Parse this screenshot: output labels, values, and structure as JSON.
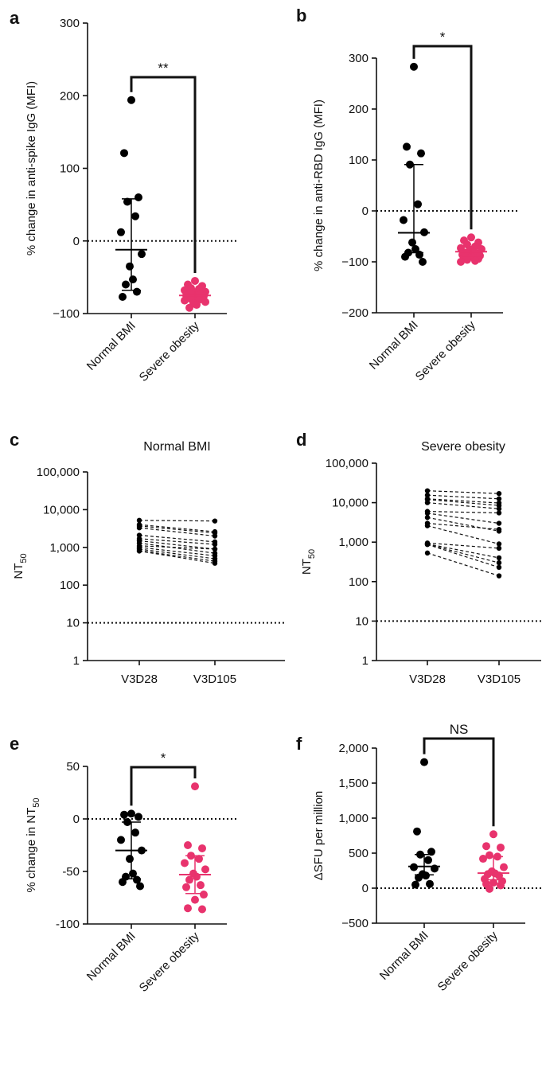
{
  "chart_data": [
    {
      "panel": "a",
      "type": "scatter",
      "ylabel": "% change in anti-spike IgG (MFI)",
      "ylim": [
        -100,
        300
      ],
      "yticks": [
        -100,
        0,
        100,
        200,
        300
      ],
      "ytick_labels": [
        "−100",
        "0",
        "100",
        "200",
        "300"
      ],
      "categories": [
        "Normal BMI",
        "Severe obesity"
      ],
      "reference_line": 0,
      "significance": "**",
      "series": [
        {
          "values": [
            194,
            121,
            60,
            54,
            34,
            12,
            -18,
            -35,
            -53,
            -60,
            -70,
            -77
          ],
          "median": -12,
          "iqr": [
            -68,
            58
          ],
          "color": "#000000"
        },
        {
          "values": [
            -55,
            -60,
            -62,
            -65,
            -66,
            -68,
            -70,
            -70,
            -72,
            -73,
            -74,
            -75,
            -76,
            -77,
            -78,
            -79,
            -80,
            -81,
            -82,
            -84,
            -86,
            -88,
            -92
          ],
          "median": -75,
          "iqr": [
            -80,
            -68
          ],
          "color": "#e8336d"
        }
      ]
    },
    {
      "panel": "b",
      "type": "scatter",
      "ylabel": "% change in anti-RBD IgG (MFI)",
      "ylim": [
        -200,
        300
      ],
      "yticks": [
        -200,
        -100,
        0,
        100,
        200,
        300
      ],
      "ytick_labels": [
        "−200",
        "−100",
        "0",
        "100",
        "200",
        "300"
      ],
      "categories": [
        "Normal BMI",
        "Severe obesity"
      ],
      "reference_line": 0,
      "significance": "*",
      "series": [
        {
          "values": [
            283,
            126,
            113,
            91,
            13,
            -18,
            -42,
            -62,
            -75,
            -82,
            -86,
            -90,
            -100
          ],
          "median": -43,
          "iqr": [
            -82,
            91
          ],
          "color": "#000000"
        },
        {
          "values": [
            -52,
            -58,
            -62,
            -66,
            -70,
            -73,
            -75,
            -78,
            -80,
            -82,
            -84,
            -86,
            -88,
            -90,
            -92,
            -94,
            -96,
            -98,
            -100
          ],
          "median": -80,
          "iqr": [
            -88,
            -70
          ],
          "color": "#e8336d"
        }
      ]
    },
    {
      "panel": "c",
      "type": "line",
      "title": "Normal BMI",
      "ylabel": "NT50",
      "yscale": "log",
      "ylim": [
        1,
        100000
      ],
      "yticks": [
        1,
        10,
        100,
        1000,
        10000,
        100000
      ],
      "ytick_labels": [
        "1",
        "10",
        "100",
        "1,000",
        "10,000",
        "100,000"
      ],
      "categories": [
        "V3D28",
        "V3D105"
      ],
      "reference_line": 10,
      "pairs": [
        [
          5200,
          5000
        ],
        [
          4000,
          2600
        ],
        [
          3700,
          2400
        ],
        [
          3300,
          2000
        ],
        [
          2100,
          1400
        ],
        [
          1700,
          1200
        ],
        [
          1500,
          900
        ],
        [
          1300,
          700
        ],
        [
          1100,
          900
        ],
        [
          1000,
          600
        ],
        [
          900,
          500
        ],
        [
          820,
          430
        ],
        [
          800,
          380
        ]
      ]
    },
    {
      "panel": "d",
      "type": "line",
      "title": "Severe obesity",
      "ylabel": "NT50",
      "yscale": "log",
      "ylim": [
        1,
        100000
      ],
      "yticks": [
        1,
        10,
        100,
        1000,
        10000,
        100000
      ],
      "ytick_labels": [
        "1",
        "10",
        "100",
        "1,000",
        "10,000",
        "100,000"
      ],
      "categories": [
        "V3D28",
        "V3D105"
      ],
      "reference_line": 10,
      "pairs": [
        [
          20000,
          17000
        ],
        [
          15500,
          12500
        ],
        [
          12500,
          9800
        ],
        [
          12000,
          8500
        ],
        [
          10000,
          7000
        ],
        [
          6000,
          5500
        ],
        [
          5400,
          3000
        ],
        [
          4200,
          1900
        ],
        [
          3000,
          2100
        ],
        [
          2600,
          900
        ],
        [
          950,
          700
        ],
        [
          900,
          400
        ],
        [
          880,
          300
        ],
        [
          870,
          230
        ],
        [
          530,
          140
        ]
      ]
    },
    {
      "panel": "e",
      "type": "scatter",
      "ylabel": "% change in NT50",
      "ylim": [
        -100,
        50
      ],
      "yticks": [
        -100,
        -50,
        0,
        50
      ],
      "ytick_labels": [
        "-100",
        "-50",
        "0",
        "50"
      ],
      "categories": [
        "Normal BMI",
        "Severe obesity"
      ],
      "reference_line": 0,
      "significance": "*",
      "series": [
        {
          "values": [
            5,
            4,
            2,
            -3,
            -13,
            -20,
            -30,
            -38,
            -52,
            -55,
            -58,
            -60,
            -64
          ],
          "median": -30,
          "iqr": [
            -57,
            -3
          ],
          "color": "#000000"
        },
        {
          "values": [
            31,
            -25,
            -28,
            -35,
            -38,
            -42,
            -48,
            -52,
            -55,
            -58,
            -63,
            -65,
            -72,
            -77,
            -85,
            -86
          ],
          "median": -53,
          "iqr": [
            -71,
            -35
          ],
          "color": "#e8336d"
        }
      ]
    },
    {
      "panel": "f",
      "type": "scatter",
      "ylabel": "ΔSFU per million",
      "ylim": [
        -500,
        2000
      ],
      "yticks": [
        -500,
        0,
        500,
        1000,
        1500,
        2000
      ],
      "ytick_labels": [
        "−500",
        "0",
        "500",
        "1,000",
        "1,500",
        "2,000"
      ],
      "categories": [
        "Normal BMI",
        "Severe obesity"
      ],
      "reference_line": 0,
      "significance": "NS",
      "series": [
        {
          "values": [
            1800,
            810,
            520,
            480,
            400,
            300,
            280,
            200,
            180,
            150,
            60,
            50
          ],
          "median": 310,
          "iqr": [
            190,
            480
          ],
          "color": "#000000"
        },
        {
          "values": [
            770,
            600,
            580,
            470,
            450,
            420,
            300,
            240,
            210,
            200,
            180,
            130,
            100,
            80,
            60,
            40,
            -10
          ],
          "median": 215,
          "iqr": [
            120,
            450
          ],
          "color": "#e8336d"
        }
      ]
    }
  ],
  "footnotes": {
    "c_ylabel_sub": "50",
    "d_ylabel_sub": "50",
    "e_ylabel_sub": "50"
  }
}
